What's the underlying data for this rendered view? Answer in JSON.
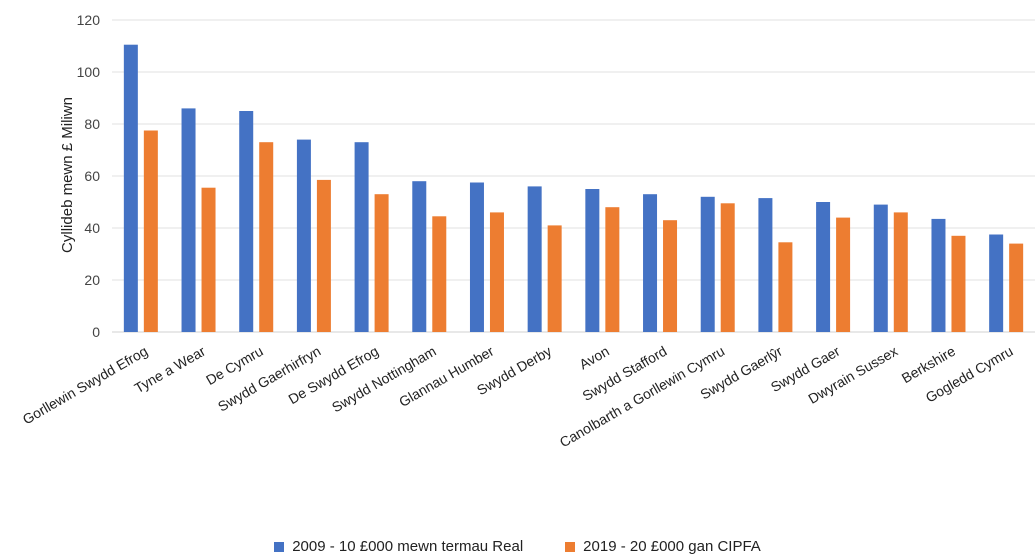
{
  "chart_data": {
    "type": "bar",
    "ylabel": "Cyllideb mewn £ Miliwn",
    "xlabel": "",
    "ylim": [
      0,
      120
    ],
    "yticks": [
      0,
      20,
      40,
      60,
      80,
      100,
      120
    ],
    "grid": true,
    "legend_position": "bottom",
    "categories": [
      "Gorllewin Swydd Efrog",
      "Tyne a Wear",
      "De Cymru",
      "Swydd Gaerhirfryn",
      "De Swydd Efrog",
      "Swydd Nottingham",
      "Glannau Humber",
      "Swydd Derby",
      "Avon",
      "Swydd Stafford",
      "Canolbarth a Gorllewin Cymru",
      "Swydd Gaerlŷr",
      "Swydd Gaer",
      "Dwyrain Sussex",
      "Berkshire",
      "Gogledd Cymru"
    ],
    "series": [
      {
        "name": "2009 - 10 £000 mewn termau Real",
        "color": "#4472C4",
        "values": [
          110.5,
          86,
          85,
          74,
          73,
          58,
          57.5,
          56,
          55,
          53,
          52,
          51.5,
          50,
          49,
          43.5,
          37.5
        ]
      },
      {
        "name": "2019 - 20 £000 gan CIPFA",
        "color": "#ED7D31",
        "values": [
          77.5,
          55.5,
          73,
          58.5,
          53,
          44.5,
          46,
          41,
          48,
          43,
          49.5,
          34.5,
          44,
          46,
          37,
          34
        ]
      }
    ]
  }
}
